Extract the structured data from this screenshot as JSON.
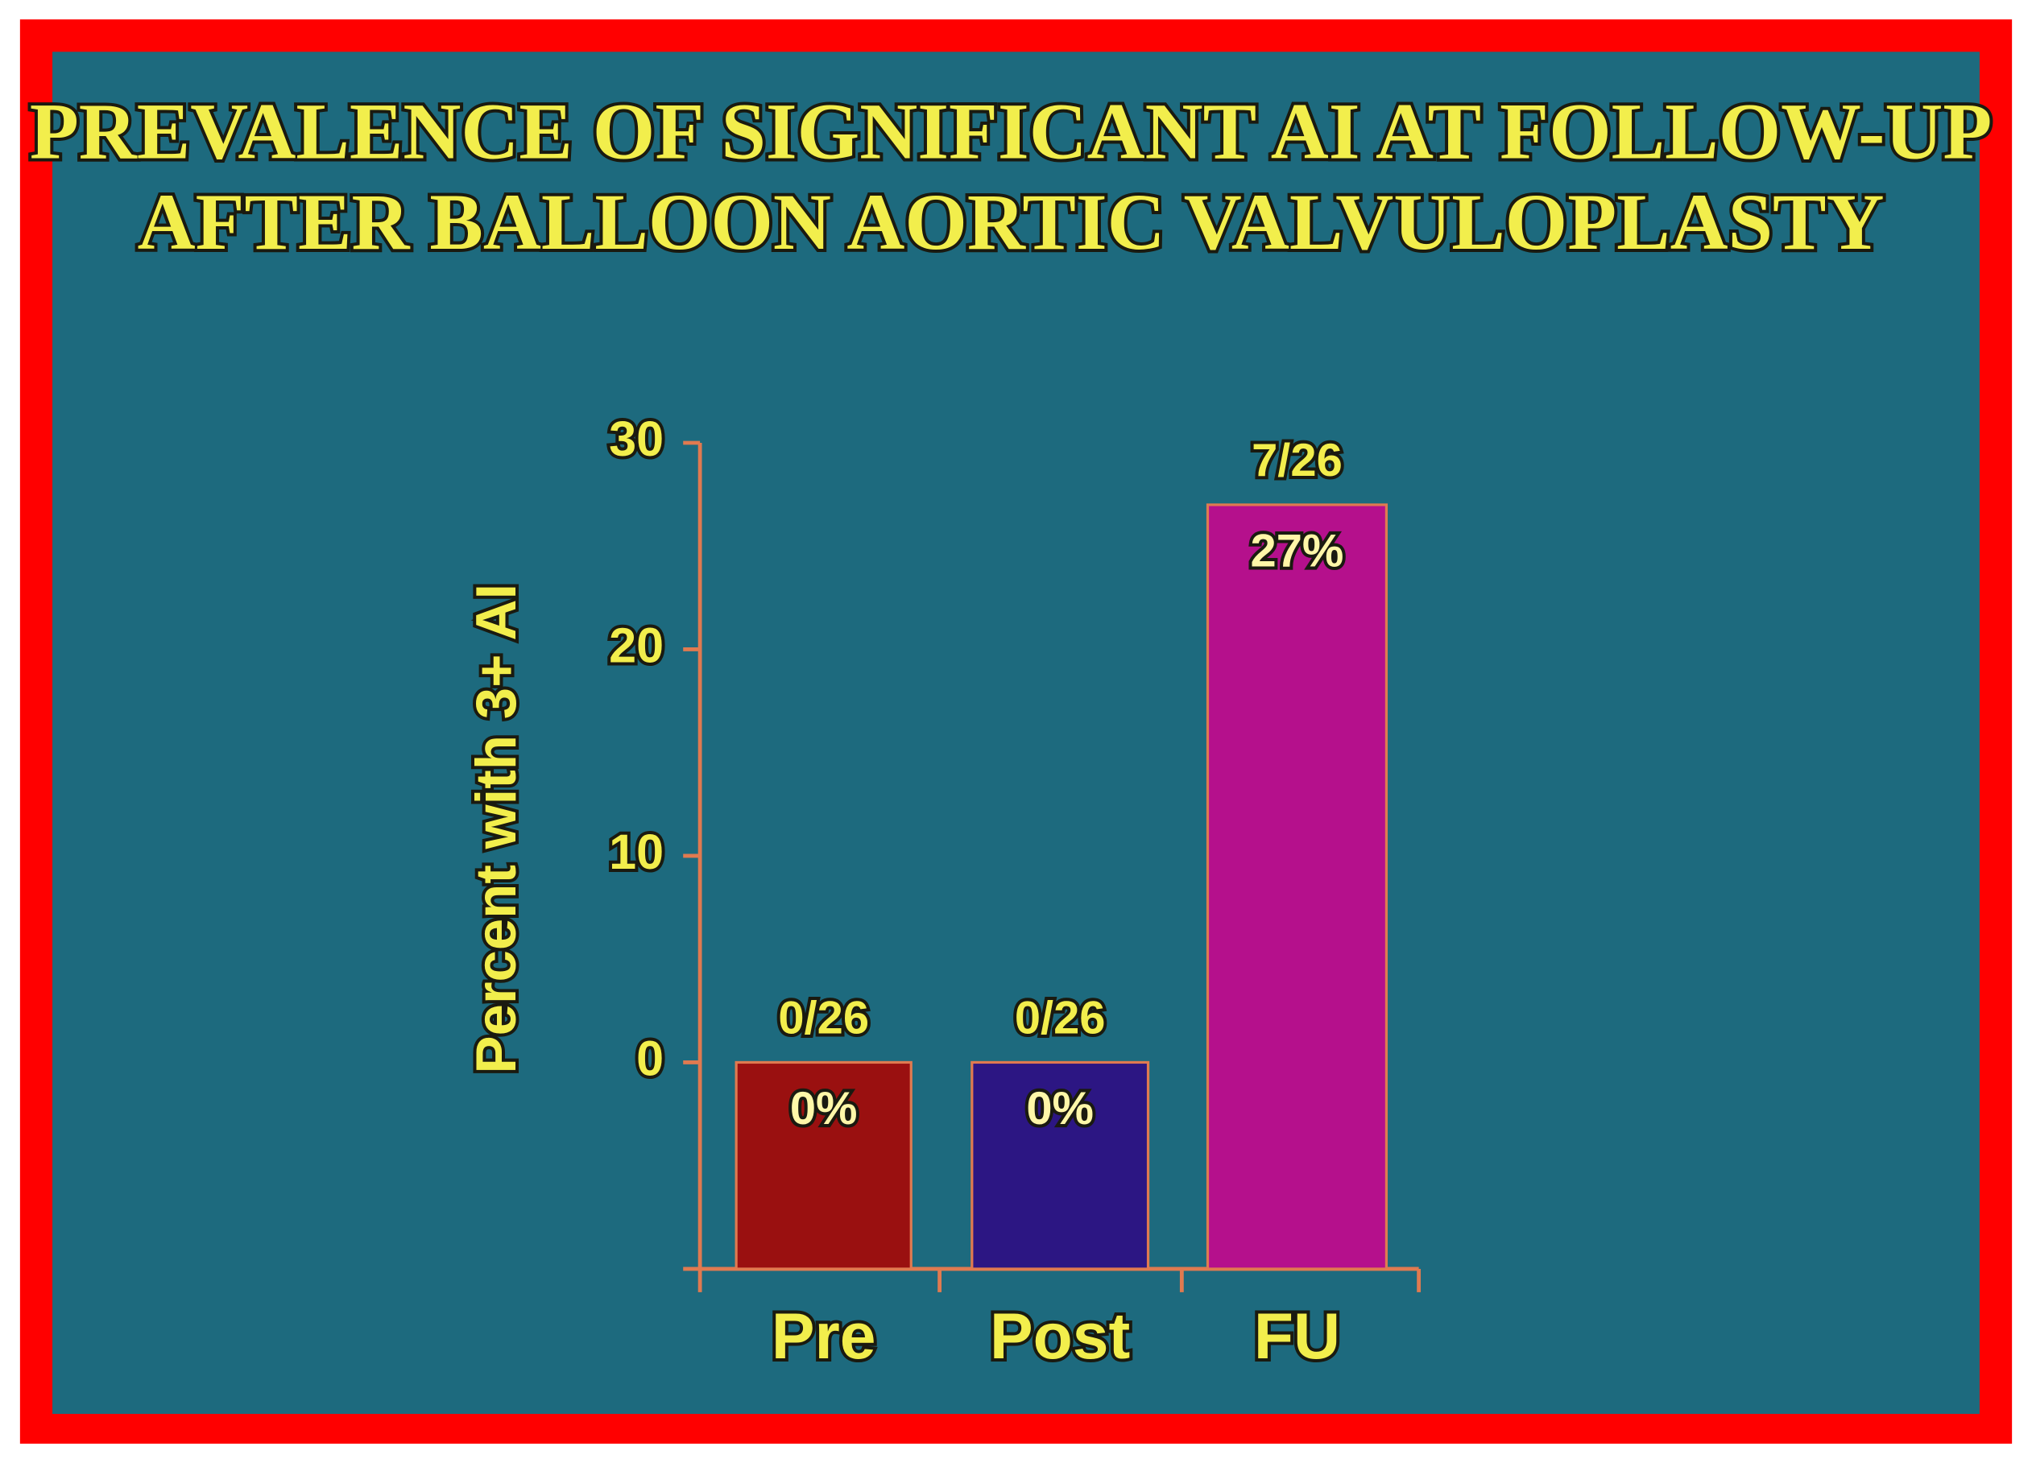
{
  "chart_data": {
    "type": "bar",
    "title": [
      "PREVALENCE OF SIGNIFICANT AI AT FOLLOW-UP",
      "AFTER BALLOON AORTIC VALVULOPLASTY"
    ],
    "y_label": "Percent with 3+ AI",
    "categories": [
      "Pre",
      "Post",
      "FU"
    ],
    "values": [
      0,
      0,
      27
    ],
    "value_labels": [
      "0%",
      "0%",
      "27%"
    ],
    "count_labels": [
      "0/26",
      "0/26",
      "7/26"
    ],
    "colors": [
      "#9a1010",
      "#2c1683",
      "#b5108c"
    ],
    "ylim": [
      -10,
      30
    ],
    "yticks": [
      0,
      10,
      20,
      30
    ]
  }
}
